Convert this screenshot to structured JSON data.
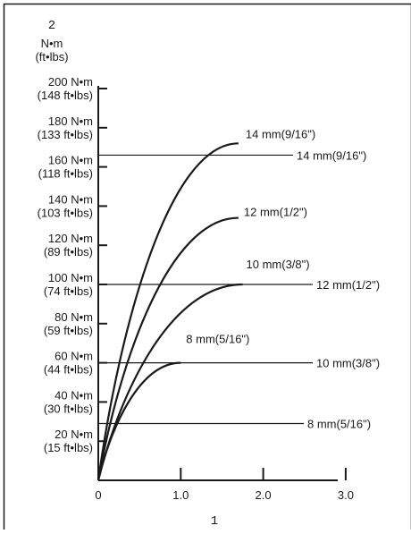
{
  "chart_data": {
    "type": "line",
    "title": "",
    "xlabel": "1",
    "ylabel": "2",
    "y_unit": "N•m",
    "y_unit_alt": "(ft•lbs)",
    "x_ticks": [
      "0",
      "1.0",
      "2.0",
      "3.0"
    ],
    "xlim": [
      0,
      3.0
    ],
    "ylim": [
      0,
      200
    ],
    "y_ticks": [
      {
        "value": 20,
        "nm": "20 N•m",
        "ft": "(15 ft•lbs)"
      },
      {
        "value": 40,
        "nm": "40 N•m",
        "ft": "(30 ft•lbs)"
      },
      {
        "value": 60,
        "nm": "60 N•m",
        "ft": "(44 ft•lbs)"
      },
      {
        "value": 80,
        "nm": "80 N•m",
        "ft": "(59 ft•lbs)"
      },
      {
        "value": 100,
        "nm": "100 N•m",
        "ft": "(74 ft•lbs)"
      },
      {
        "value": 120,
        "nm": "120 N•m",
        "ft": "(89 ft•lbs)"
      },
      {
        "value": 140,
        "nm": "140 N•m",
        "ft": "(103 ft•lbs)"
      },
      {
        "value": 160,
        "nm": "160 N•m",
        "ft": "(118 ft•lbs)"
      },
      {
        "value": 180,
        "nm": "180 N•m",
        "ft": "(133 ft•lbs)"
      },
      {
        "value": 200,
        "nm": "200 N•m",
        "ft": "(148 ft•lbs)"
      }
    ],
    "series": [
      {
        "name": "14 mm(9/16\")",
        "x_end": 1.7,
        "y_end": 172
      },
      {
        "name": "12 mm(1/2\")",
        "x_end": 1.7,
        "y_end": 134
      },
      {
        "name": "10 mm(3/8\")",
        "x_end": 1.75,
        "y_end": 100
      },
      {
        "name": "8 mm(5/16\")",
        "x_end": 1.0,
        "y_end": 60
      }
    ],
    "reference_lines": [
      {
        "label": "14 mm(9/16\")",
        "y": 166
      },
      {
        "label": "12 mm(1/2\")",
        "y": 100
      },
      {
        "label": "10 mm(3/8\")",
        "y": 60
      },
      {
        "label": "8 mm(5/16\")",
        "y": 29
      }
    ],
    "grid": false,
    "colors": {
      "line": "#1a1a1a",
      "background": "#ffffff"
    }
  }
}
